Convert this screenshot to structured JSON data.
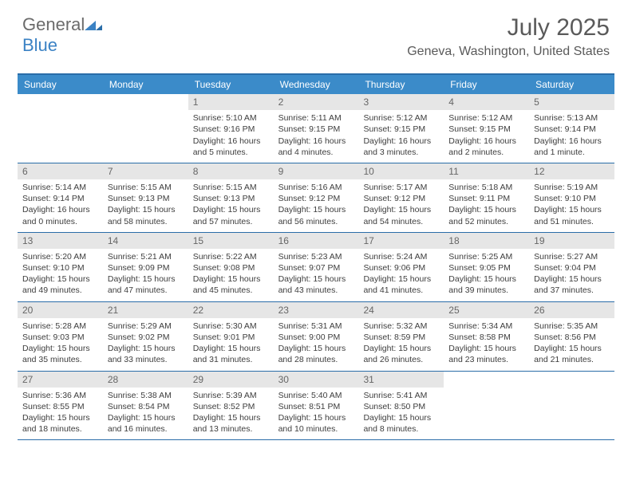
{
  "brand": {
    "part1": "General",
    "part2": "Blue"
  },
  "title": "July 2025",
  "location": "Geneva, Washington, United States",
  "colors": {
    "header_bg": "#3b8bc9",
    "header_text": "#ffffff",
    "rule": "#2a6da8",
    "daynum_bg": "#e6e6e6",
    "daynum_text": "#666666",
    "body_text": "#3d3d3d",
    "brand_gray": "#6b6b6b",
    "brand_blue": "#3b82c4"
  },
  "dow": [
    "Sunday",
    "Monday",
    "Tuesday",
    "Wednesday",
    "Thursday",
    "Friday",
    "Saturday"
  ],
  "weeks": [
    [
      null,
      null,
      {
        "n": "1",
        "sr": "5:10 AM",
        "ss": "9:16 PM",
        "dl": "16 hours and 5 minutes."
      },
      {
        "n": "2",
        "sr": "5:11 AM",
        "ss": "9:15 PM",
        "dl": "16 hours and 4 minutes."
      },
      {
        "n": "3",
        "sr": "5:12 AM",
        "ss": "9:15 PM",
        "dl": "16 hours and 3 minutes."
      },
      {
        "n": "4",
        "sr": "5:12 AM",
        "ss": "9:15 PM",
        "dl": "16 hours and 2 minutes."
      },
      {
        "n": "5",
        "sr": "5:13 AM",
        "ss": "9:14 PM",
        "dl": "16 hours and 1 minute."
      }
    ],
    [
      {
        "n": "6",
        "sr": "5:14 AM",
        "ss": "9:14 PM",
        "dl": "16 hours and 0 minutes."
      },
      {
        "n": "7",
        "sr": "5:15 AM",
        "ss": "9:13 PM",
        "dl": "15 hours and 58 minutes."
      },
      {
        "n": "8",
        "sr": "5:15 AM",
        "ss": "9:13 PM",
        "dl": "15 hours and 57 minutes."
      },
      {
        "n": "9",
        "sr": "5:16 AM",
        "ss": "9:12 PM",
        "dl": "15 hours and 56 minutes."
      },
      {
        "n": "10",
        "sr": "5:17 AM",
        "ss": "9:12 PM",
        "dl": "15 hours and 54 minutes."
      },
      {
        "n": "11",
        "sr": "5:18 AM",
        "ss": "9:11 PM",
        "dl": "15 hours and 52 minutes."
      },
      {
        "n": "12",
        "sr": "5:19 AM",
        "ss": "9:10 PM",
        "dl": "15 hours and 51 minutes."
      }
    ],
    [
      {
        "n": "13",
        "sr": "5:20 AM",
        "ss": "9:10 PM",
        "dl": "15 hours and 49 minutes."
      },
      {
        "n": "14",
        "sr": "5:21 AM",
        "ss": "9:09 PM",
        "dl": "15 hours and 47 minutes."
      },
      {
        "n": "15",
        "sr": "5:22 AM",
        "ss": "9:08 PM",
        "dl": "15 hours and 45 minutes."
      },
      {
        "n": "16",
        "sr": "5:23 AM",
        "ss": "9:07 PM",
        "dl": "15 hours and 43 minutes."
      },
      {
        "n": "17",
        "sr": "5:24 AM",
        "ss": "9:06 PM",
        "dl": "15 hours and 41 minutes."
      },
      {
        "n": "18",
        "sr": "5:25 AM",
        "ss": "9:05 PM",
        "dl": "15 hours and 39 minutes."
      },
      {
        "n": "19",
        "sr": "5:27 AM",
        "ss": "9:04 PM",
        "dl": "15 hours and 37 minutes."
      }
    ],
    [
      {
        "n": "20",
        "sr": "5:28 AM",
        "ss": "9:03 PM",
        "dl": "15 hours and 35 minutes."
      },
      {
        "n": "21",
        "sr": "5:29 AM",
        "ss": "9:02 PM",
        "dl": "15 hours and 33 minutes."
      },
      {
        "n": "22",
        "sr": "5:30 AM",
        "ss": "9:01 PM",
        "dl": "15 hours and 31 minutes."
      },
      {
        "n": "23",
        "sr": "5:31 AM",
        "ss": "9:00 PM",
        "dl": "15 hours and 28 minutes."
      },
      {
        "n": "24",
        "sr": "5:32 AM",
        "ss": "8:59 PM",
        "dl": "15 hours and 26 minutes."
      },
      {
        "n": "25",
        "sr": "5:34 AM",
        "ss": "8:58 PM",
        "dl": "15 hours and 23 minutes."
      },
      {
        "n": "26",
        "sr": "5:35 AM",
        "ss": "8:56 PM",
        "dl": "15 hours and 21 minutes."
      }
    ],
    [
      {
        "n": "27",
        "sr": "5:36 AM",
        "ss": "8:55 PM",
        "dl": "15 hours and 18 minutes."
      },
      {
        "n": "28",
        "sr": "5:38 AM",
        "ss": "8:54 PM",
        "dl": "15 hours and 16 minutes."
      },
      {
        "n": "29",
        "sr": "5:39 AM",
        "ss": "8:52 PM",
        "dl": "15 hours and 13 minutes."
      },
      {
        "n": "30",
        "sr": "5:40 AM",
        "ss": "8:51 PM",
        "dl": "15 hours and 10 minutes."
      },
      {
        "n": "31",
        "sr": "5:41 AM",
        "ss": "8:50 PM",
        "dl": "15 hours and 8 minutes."
      },
      null,
      null
    ]
  ],
  "labels": {
    "sunrise": "Sunrise:",
    "sunset": "Sunset:",
    "daylight": "Daylight:"
  }
}
